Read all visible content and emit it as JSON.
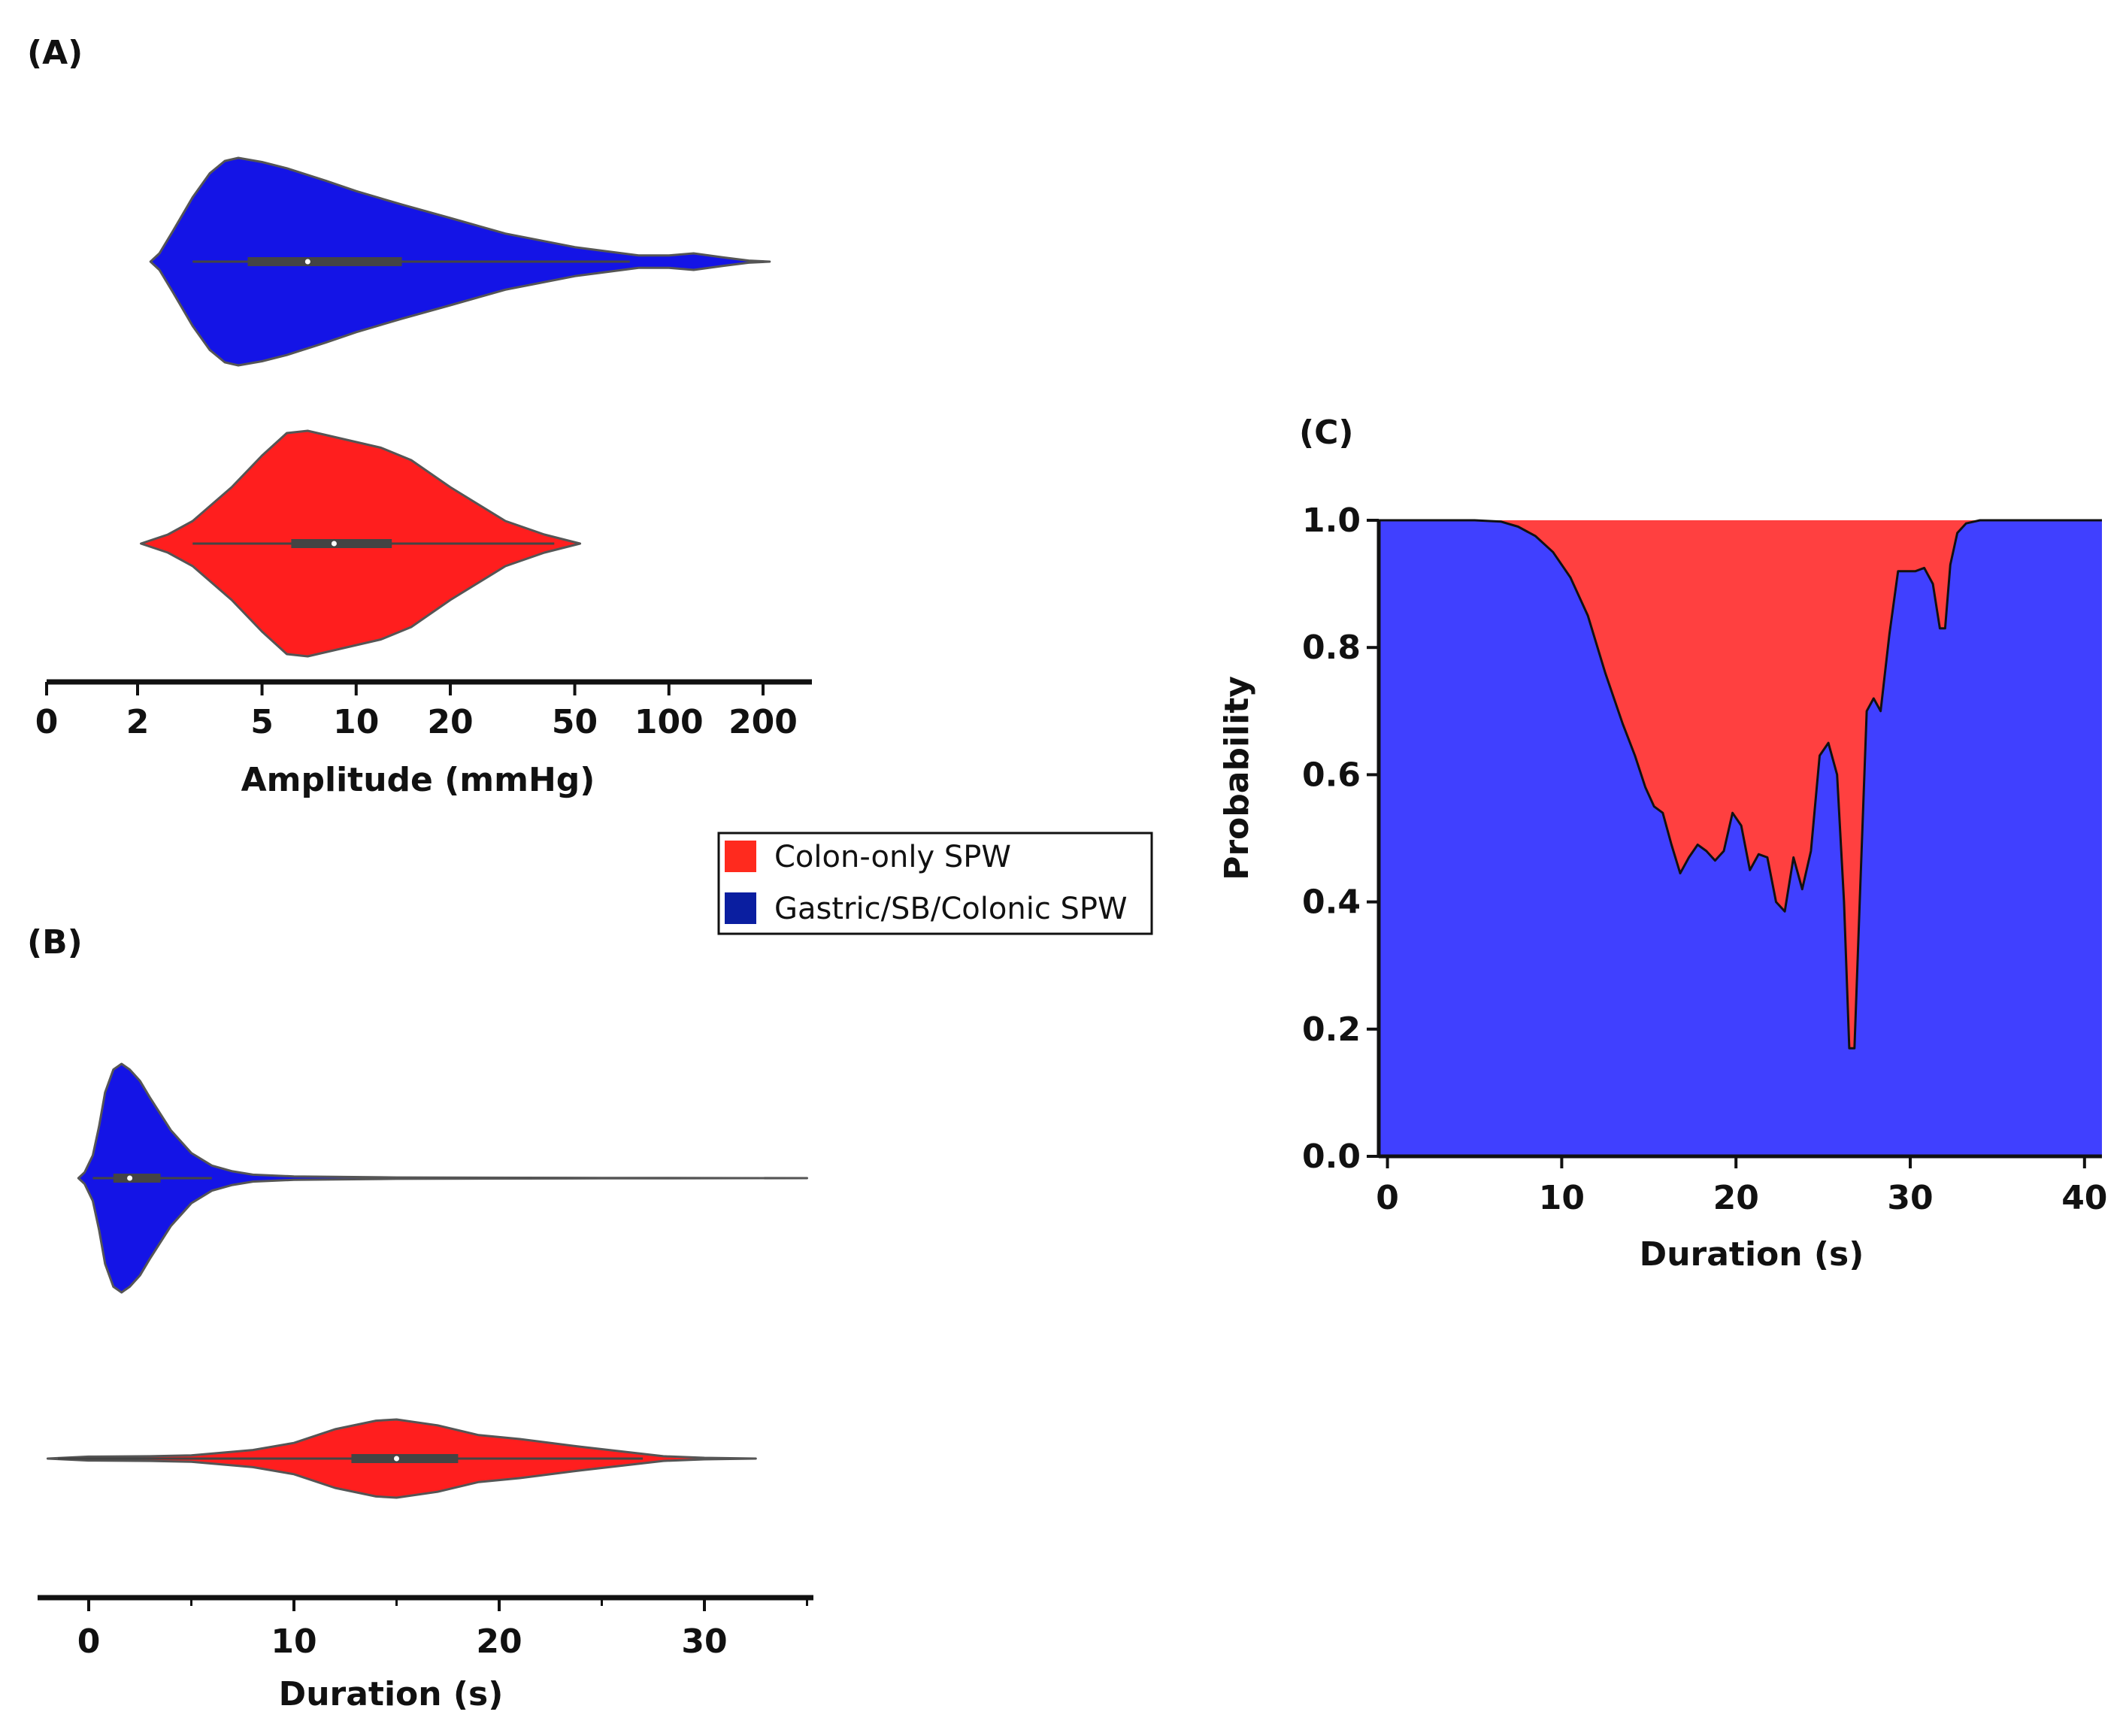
{
  "figure": {
    "legend": {
      "entries": [
        {
          "label": "Colon-only SPW",
          "color": "#ff2a1e"
        },
        {
          "label": "Gastric/SB/Colonic SPW",
          "color": "#0a1ea0"
        }
      ]
    },
    "colors": {
      "colon": "#ff1e1e",
      "gastric": "#1414e6",
      "stack_blue": "#4040ff",
      "stack_red": "#ff4040"
    }
  },
  "chart_data": [
    {
      "type": "violin",
      "panel_label": "(A)",
      "xlabel": "Amplitude (mmHg)",
      "x_scale": "log (0 shown at origin)",
      "x_ticks": [
        0,
        2,
        5,
        10,
        20,
        50,
        100,
        200
      ],
      "x_tick_labels": [
        "0",
        "2",
        "5",
        "10",
        "20",
        "50",
        "100",
        "200"
      ],
      "series": [
        {
          "name": "Gastric/SB/Colonic SPW",
          "color": "#1414e6",
          "range": [
            2.2,
            210
          ],
          "whisker": [
            3,
            75
          ],
          "q1": 4.5,
          "median": 7,
          "q3": 14,
          "profile": [
            [
              2.2,
              0.0
            ],
            [
              2.35,
              0.08
            ],
            [
              2.6,
              0.3
            ],
            [
              3,
              0.62
            ],
            [
              3.4,
              0.85
            ],
            [
              3.8,
              0.97
            ],
            [
              4.2,
              1.0
            ],
            [
              5,
              0.96
            ],
            [
              6,
              0.9
            ],
            [
              8,
              0.78
            ],
            [
              10,
              0.68
            ],
            [
              14,
              0.55
            ],
            [
              20,
              0.42
            ],
            [
              30,
              0.27
            ],
            [
              50,
              0.14
            ],
            [
              80,
              0.06
            ],
            [
              100,
              0.06
            ],
            [
              120,
              0.08
            ],
            [
              150,
              0.04
            ],
            [
              180,
              0.01
            ],
            [
              210,
              0.0
            ]
          ]
        },
        {
          "name": "Colon-only SPW",
          "color": "#ff1e1e",
          "range": [
            2.05,
            52
          ],
          "whisker": [
            3,
            43
          ],
          "q1": 6.2,
          "median": 8.5,
          "q3": 13,
          "profile": [
            [
              2.05,
              0.0
            ],
            [
              2.5,
              0.08
            ],
            [
              3,
              0.2
            ],
            [
              4,
              0.5
            ],
            [
              5,
              0.78
            ],
            [
              6,
              0.98
            ],
            [
              7,
              1.0
            ],
            [
              9,
              0.93
            ],
            [
              12,
              0.85
            ],
            [
              15,
              0.74
            ],
            [
              20,
              0.5
            ],
            [
              30,
              0.2
            ],
            [
              40,
              0.08
            ],
            [
              52,
              0.0
            ]
          ]
        }
      ]
    },
    {
      "type": "violin",
      "panel_label": "(B)",
      "xlabel": "Duration (s)",
      "x_ticks": [
        0,
        10,
        20,
        30
      ],
      "x_tick_labels": [
        "0",
        "10",
        "20",
        "30"
      ],
      "xlim": [
        -2.2,
        35.5
      ],
      "series": [
        {
          "name": "Gastric/SB/Colonic SPW",
          "color": "#1414e6",
          "range": [
            -0.5,
            35
          ],
          "whisker": [
            0.2,
            6
          ],
          "q1": 1.2,
          "median": 2,
          "q3": 3.5,
          "profile": [
            [
              -0.5,
              0.0
            ],
            [
              -0.2,
              0.05
            ],
            [
              0.2,
              0.2
            ],
            [
              0.5,
              0.45
            ],
            [
              0.8,
              0.75
            ],
            [
              1.2,
              0.95
            ],
            [
              1.6,
              1.0
            ],
            [
              2,
              0.95
            ],
            [
              2.5,
              0.85
            ],
            [
              3,
              0.7
            ],
            [
              4,
              0.42
            ],
            [
              5,
              0.22
            ],
            [
              6,
              0.11
            ],
            [
              7,
              0.06
            ],
            [
              8,
              0.03
            ],
            [
              10,
              0.015
            ],
            [
              15,
              0.006
            ],
            [
              25,
              0.002
            ],
            [
              35,
              0.0
            ]
          ]
        },
        {
          "name": "Colon-only SPW",
          "color": "#ff1e1e",
          "range": [
            -2,
            32.5
          ],
          "whisker": [
            -1.5,
            27
          ],
          "q1": 12.8,
          "median": 15,
          "q3": 18,
          "profile": [
            [
              -2,
              0.0
            ],
            [
              0,
              0.05
            ],
            [
              3,
              0.06
            ],
            [
              5,
              0.08
            ],
            [
              8,
              0.22
            ],
            [
              10,
              0.4
            ],
            [
              12,
              0.75
            ],
            [
              14,
              0.97
            ],
            [
              15,
              1.0
            ],
            [
              17,
              0.85
            ],
            [
              19,
              0.6
            ],
            [
              21,
              0.5
            ],
            [
              24,
              0.3
            ],
            [
              26,
              0.18
            ],
            [
              28,
              0.06
            ],
            [
              30,
              0.02
            ],
            [
              32.5,
              0.0
            ]
          ]
        }
      ]
    },
    {
      "type": "stacked-area",
      "panel_label": "(C)",
      "xlabel": "Duration (s)",
      "ylabel": "Probability",
      "xlim": [
        -0.5,
        41
      ],
      "ylim": [
        0,
        1
      ],
      "x_ticks": [
        0,
        10,
        20,
        30,
        40
      ],
      "x_tick_labels": [
        "0",
        "10",
        "20",
        "30",
        "40"
      ],
      "y_ticks": [
        0,
        0.2,
        0.4,
        0.6,
        0.8,
        1.0
      ],
      "y_tick_labels": [
        "0.0",
        "0.2",
        "0.4",
        "0.6",
        "0.8",
        "1.0"
      ],
      "series": [
        {
          "name": "Gastric/SB/Colonic SPW",
          "color": "#4040ff",
          "position": "below curve"
        },
        {
          "name": "Colon-only SPW",
          "color": "#ff4040",
          "position": "above curve"
        }
      ],
      "boundary": {
        "x": [
          -0.5,
          5,
          6.5,
          7.5,
          8.5,
          9.5,
          10.5,
          11.5,
          12.5,
          13.5,
          14.2,
          14.8,
          15.3,
          15.8,
          16.3,
          16.8,
          17.3,
          17.8,
          18.3,
          18.8,
          19.3,
          19.8,
          20.3,
          20.8,
          21.3,
          21.8,
          22.3,
          22.8,
          23.3,
          23.8,
          24.3,
          24.8,
          25.3,
          25.8,
          26.2,
          26.5,
          26.8,
          27.1,
          27.5,
          27.9,
          28.3,
          28.8,
          29.3,
          29.8,
          30.3,
          30.8,
          31.3,
          31.7,
          32.0,
          32.3,
          32.7,
          33.2,
          34,
          36,
          41
        ],
        "y": [
          1.0,
          1.0,
          0.998,
          0.99,
          0.975,
          0.95,
          0.91,
          0.85,
          0.76,
          0.68,
          0.63,
          0.58,
          0.55,
          0.54,
          0.49,
          0.445,
          0.47,
          0.49,
          0.48,
          0.465,
          0.48,
          0.54,
          0.52,
          0.45,
          0.475,
          0.47,
          0.4,
          0.385,
          0.47,
          0.42,
          0.48,
          0.63,
          0.65,
          0.6,
          0.4,
          0.17,
          0.17,
          0.4,
          0.7,
          0.72,
          0.7,
          0.82,
          0.92,
          0.92,
          0.92,
          0.925,
          0.9,
          0.83,
          0.83,
          0.93,
          0.98,
          0.995,
          1.0,
          1.0,
          1.0
        ]
      }
    }
  ]
}
